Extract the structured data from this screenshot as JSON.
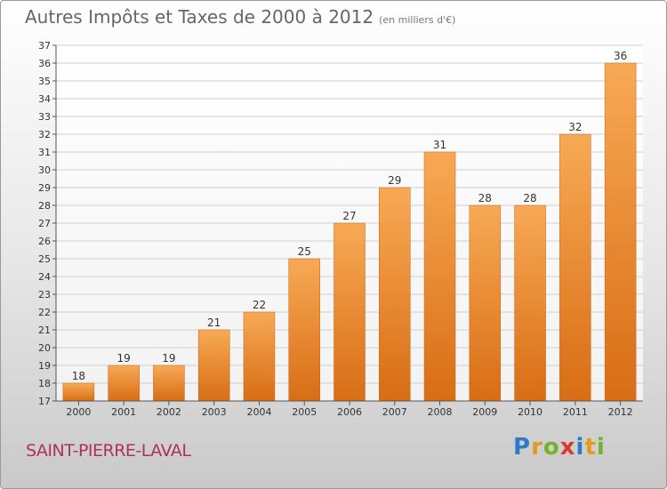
{
  "header": {
    "title": "Autres Impôts et Taxes de 2000 à 2012",
    "subtitle": "(en milliers d'€)"
  },
  "footer": {
    "commune": "SAINT-PIERRE-LAVAL",
    "logo_letters": [
      {
        "ch": "P",
        "color": "#2c7bc8"
      },
      {
        "ch": "r",
        "color": "#e39a1f"
      },
      {
        "ch": "o",
        "color": "#6fb52b"
      },
      {
        "ch": "x",
        "color": "#d93a2b"
      },
      {
        "ch": "i",
        "color": "#2c7bc8"
      },
      {
        "ch": "t",
        "color": "#e39a1f"
      },
      {
        "ch": "i",
        "color": "#6fb52b"
      }
    ]
  },
  "colors": {
    "bar_top": "#f8a955",
    "bar_bottom": "#d86d14",
    "grid": "#cfcfcf",
    "axis": "#555555"
  },
  "chart_data": {
    "type": "bar",
    "title": "Autres Impôts et Taxes de 2000 à 2012",
    "subtitle": "(en milliers d'€)",
    "categories": [
      "2000",
      "2001",
      "2002",
      "2003",
      "2004",
      "2005",
      "2006",
      "2007",
      "2008",
      "2009",
      "2010",
      "2011",
      "2012"
    ],
    "values": [
      18,
      19,
      19,
      21,
      22,
      25,
      27,
      29,
      31,
      28,
      28,
      32,
      36
    ],
    "ylim": [
      17,
      37
    ],
    "yticks": [
      17,
      18,
      19,
      20,
      21,
      22,
      23,
      24,
      25,
      26,
      27,
      28,
      29,
      30,
      31,
      32,
      33,
      34,
      35,
      36,
      37
    ],
    "grid": true,
    "data_labels": true
  }
}
